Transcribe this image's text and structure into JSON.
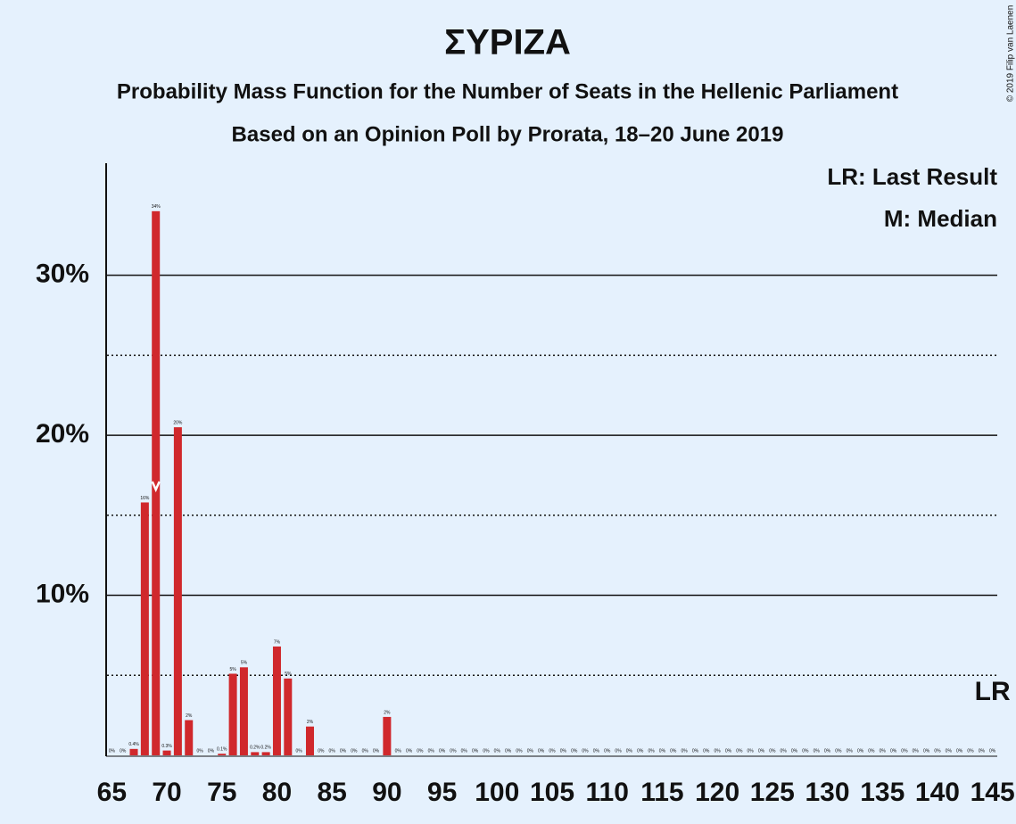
{
  "chart_data": {
    "type": "bar",
    "title": "ΣΥΡΙΖΑ",
    "subtitle": "Probability Mass Function for the Number of Seats in the Hellenic Parliament",
    "subtitle2": "Based on an Opinion Poll by Prorata, 18–20 June 2019",
    "copyright": "© 2019 Filip van Laenen",
    "legend": [
      "LR: Last Result",
      "M: Median"
    ],
    "x": [
      65,
      66,
      67,
      68,
      69,
      70,
      71,
      72,
      73,
      74,
      75,
      76,
      77,
      78,
      79,
      80,
      81,
      82,
      83,
      84,
      85,
      86,
      87,
      88,
      89,
      90,
      91,
      92,
      93,
      94,
      95,
      96,
      97,
      98,
      99,
      100,
      101,
      102,
      103,
      104,
      105,
      106,
      107,
      108,
      109,
      110,
      111,
      112,
      113,
      114,
      115,
      116,
      117,
      118,
      119,
      120,
      121,
      122,
      123,
      124,
      125,
      126,
      127,
      128,
      129,
      130,
      131,
      132,
      133,
      134,
      135,
      136,
      137,
      138,
      139,
      140,
      141,
      142,
      143,
      144,
      145
    ],
    "values": [
      0,
      0,
      0.4,
      15.8,
      34,
      0.3,
      20.5,
      2.2,
      0,
      0,
      0.1,
      5.1,
      5.5,
      0.2,
      0.2,
      6.8,
      4.8,
      0,
      1.8,
      0,
      0,
      0,
      0,
      0,
      0,
      2.4,
      0,
      0,
      0,
      0,
      0,
      0,
      0,
      0,
      0,
      0,
      0,
      0,
      0,
      0,
      0,
      0,
      0,
      0,
      0,
      0,
      0,
      0,
      0,
      0,
      0,
      0,
      0,
      0,
      0,
      0,
      0,
      0,
      0,
      0,
      0,
      0,
      0,
      0,
      0,
      0,
      0,
      0,
      0,
      0,
      0,
      0,
      0,
      0,
      0,
      0,
      0,
      0,
      0,
      0,
      0
    ],
    "value_labels": [
      "0%",
      "0%",
      "0.4%",
      "16%",
      "34%",
      "0.3%",
      "20%",
      "2%",
      "0%",
      "0%",
      "0.1%",
      "5%",
      "5%",
      "0.2%",
      "0.2%",
      "7%",
      "5%",
      "0%",
      "2%",
      "0%",
      "0%",
      "0%",
      "0%",
      "0%",
      "0%",
      "2%",
      "0%",
      "0%",
      "0%",
      "0%",
      "0%",
      "0%",
      "0%",
      "0%",
      "0%",
      "0%",
      "0%",
      "0%",
      "0%",
      "0%",
      "0%",
      "0%",
      "0%",
      "0%",
      "0%",
      "0%",
      "0%",
      "0%",
      "0%",
      "0%",
      "0%",
      "0%",
      "0%",
      "0%",
      "0%",
      "0%",
      "0%",
      "0%",
      "0%",
      "0%",
      "0%",
      "0%",
      "0%",
      "0%",
      "0%",
      "0%",
      "0%",
      "0%",
      "0%",
      "0%",
      "0%",
      "0%",
      "0%",
      "0%",
      "0%",
      "0%",
      "0%",
      "0%",
      "0%",
      "0%",
      "0%"
    ],
    "color": "#d0282c",
    "xlim": [
      64,
      146
    ],
    "xticks": [
      65,
      70,
      75,
      80,
      85,
      90,
      95,
      100,
      105,
      110,
      115,
      120,
      125,
      130,
      135,
      140,
      145
    ],
    "ylim": [
      0,
      37
    ],
    "yticks": [
      {
        "value": 10,
        "label": "10%"
      },
      {
        "value": 20,
        "label": "20%"
      },
      {
        "value": 30,
        "label": "30%"
      }
    ],
    "minor_yticks": [
      5,
      15,
      25
    ],
    "median": 69,
    "last_result": 145,
    "last_result_label": "LR"
  }
}
